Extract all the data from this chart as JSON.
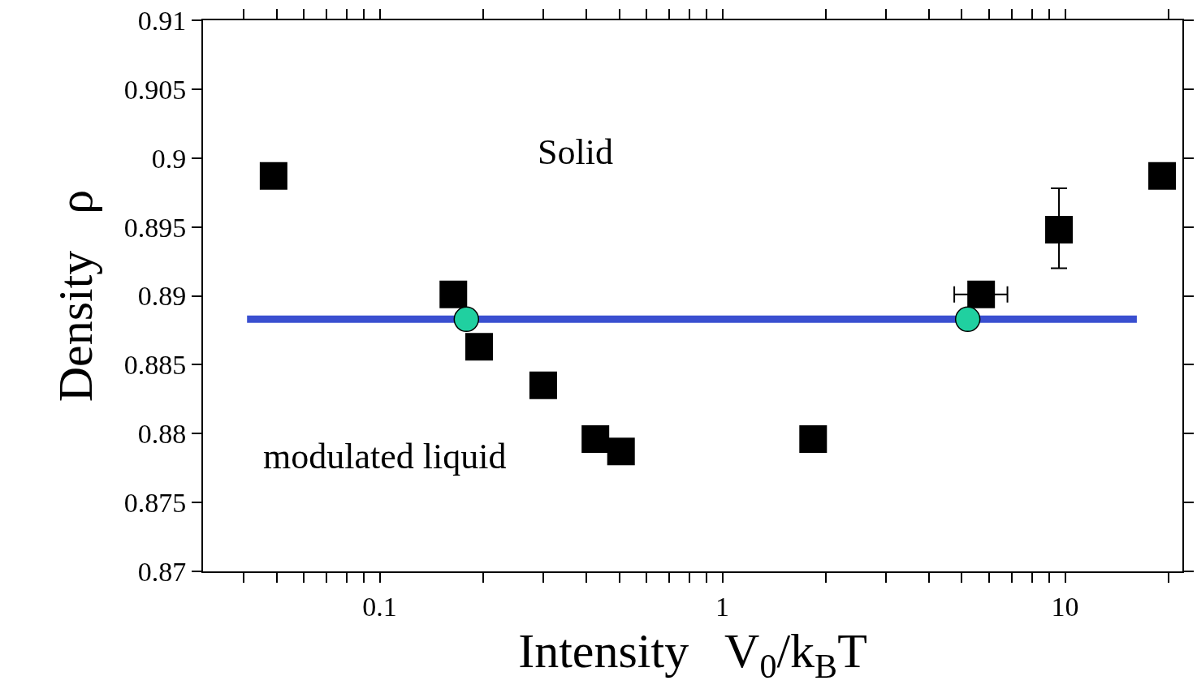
{
  "chart_data": {
    "type": "scatter",
    "xlabel": "Intensity   V$_{0}$/k$_{B}$T",
    "ylabel": "Density   ρ",
    "log": "x",
    "xlim": [
      0.0305,
      22
    ],
    "xticks": [
      {
        "value": 0.04,
        "label": null
      },
      {
        "value": 0.05,
        "label": null
      },
      {
        "value": 0.06,
        "label": null
      },
      {
        "value": 0.07,
        "label": null
      },
      {
        "value": 0.08,
        "label": null
      },
      {
        "value": 0.09,
        "label": null
      },
      0.1,
      {
        "value": 0.2,
        "label": null
      },
      {
        "value": 0.3,
        "label": null
      },
      {
        "value": 0.4,
        "label": null
      },
      {
        "value": 0.5,
        "label": null
      },
      {
        "value": 0.6,
        "label": null
      },
      {
        "value": 0.7,
        "label": null
      },
      {
        "value": 0.8,
        "label": null
      },
      {
        "value": 0.9,
        "label": null
      },
      1,
      {
        "value": 2,
        "label": null
      },
      {
        "value": 3,
        "label": null
      },
      {
        "value": 4,
        "label": null
      },
      {
        "value": 5,
        "label": null
      },
      {
        "value": 6,
        "label": null
      },
      {
        "value": 7,
        "label": null
      },
      {
        "value": 8,
        "label": null
      },
      {
        "value": 9,
        "label": null
      },
      10,
      {
        "value": 20,
        "label": null
      }
    ],
    "ylim": [
      0.87,
      0.91
    ],
    "yticks": [
      0.87,
      0.875,
      0.88,
      0.885,
      0.89,
      0.895,
      0.9,
      0.905,
      0.91
    ],
    "grid": false,
    "series": [
      {
        "type": "line",
        "color": "#3a4fd0",
        "marker": "none",
        "line_style": "solid",
        "x": [
          0.041,
          16.2
        ],
        "values": [
          0.8883,
          0.8883
        ]
      },
      {
        "color": "#000000",
        "marker": "square",
        "x": [
          0.049,
          0.164,
          0.195,
          0.3,
          0.426,
          0.506,
          1.84,
          5.69,
          9.6,
          19.2
        ],
        "values": [
          0.8987,
          0.8901,
          0.8863,
          0.8835,
          0.8796,
          0.8787,
          0.8796,
          0.8901,
          0.8948,
          0.8987
        ],
        "errors": [
          null,
          null,
          null,
          null,
          null,
          null,
          null,
          null,
          [
            0.892,
            0.8978
          ],
          null
        ],
        "xerrors": [
          null,
          null,
          null,
          null,
          null,
          null,
          null,
          [
            4.75,
            6.79
          ],
          null,
          null
        ]
      },
      {
        "color": "#20d0a0",
        "marker": "circle",
        "x": [
          0.179,
          5.2
        ],
        "values": [
          0.8883,
          0.8883
        ]
      }
    ],
    "annotations": [
      "Solid",
      "modulated liquid"
    ]
  }
}
